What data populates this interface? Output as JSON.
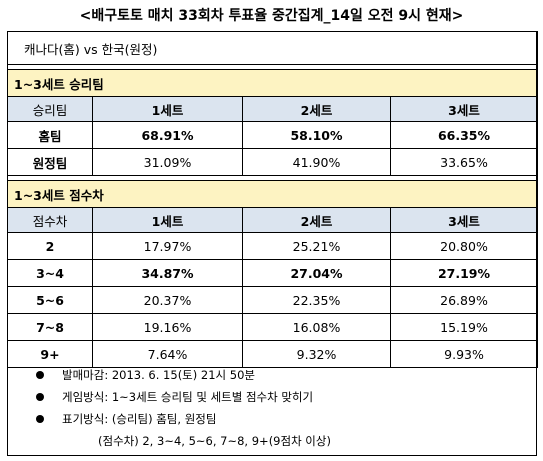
{
  "title": "<배구토토 매치 33회차 투표율 중간집계_14일 오전 9시 현재>",
  "match": "캐나다(홈) vs 한국(원정)",
  "section1": {
    "title": "1~3세트 승리팀",
    "headers": [
      "승리팀",
      "1세트",
      "2세트",
      "3세트"
    ],
    "rows": [
      {
        "label": "홈팀",
        "values": [
          "68.91%",
          "58.10%",
          "66.35%"
        ],
        "bold": [
          true,
          true,
          true
        ]
      },
      {
        "label": "원정팀",
        "values": [
          "31.09%",
          "41.90%",
          "33.65%"
        ],
        "bold": [
          false,
          false,
          false
        ]
      }
    ]
  },
  "section2": {
    "title": "1~3세트 점수차",
    "headers": [
      "점수차",
      "1세트",
      "2세트",
      "3세트"
    ],
    "rows": [
      {
        "label": "2",
        "values": [
          "17.97%",
          "25.21%",
          "20.80%"
        ],
        "bold": [
          false,
          false,
          false
        ]
      },
      {
        "label": "3~4",
        "values": [
          "34.87%",
          "27.04%",
          "27.19%"
        ],
        "bold": [
          true,
          true,
          true
        ]
      },
      {
        "label": "5~6",
        "values": [
          "20.37%",
          "22.35%",
          "26.89%"
        ],
        "bold": [
          false,
          false,
          false
        ]
      },
      {
        "label": "7~8",
        "values": [
          "19.16%",
          "16.08%",
          "15.19%"
        ],
        "bold": [
          false,
          false,
          false
        ]
      },
      {
        "label": "9+",
        "values": [
          "7.64%",
          "9.32%",
          "9.93%"
        ],
        "bold": [
          false,
          false,
          false
        ]
      }
    ]
  },
  "notes": {
    "deadline": "발매마감: 2013. 6. 15(토) 21시 50분",
    "method": "게임방식: 1~3세트 승리팀 및 세트별 점수차 맞히기",
    "notation": "표기방식: (승리팀) 홈팀, 원정팀",
    "notation_cont": "(점수차) 2, 3~4, 5~6, 7~8, 9+(9점차 이상)"
  }
}
